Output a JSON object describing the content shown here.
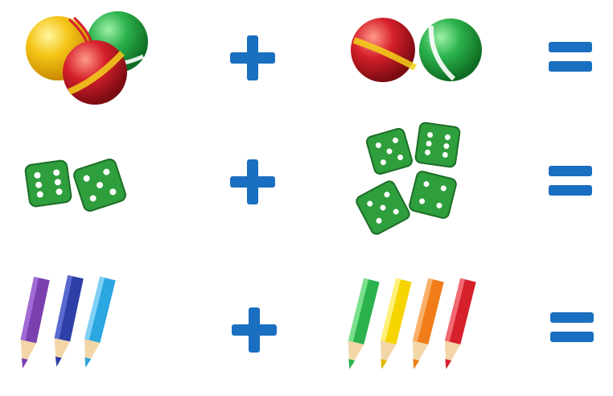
{
  "worksheet": {
    "rows": [
      {
        "left": {
          "object": "balls",
          "count": 3,
          "colors": [
            "#f5c518",
            "#2bb24c",
            "#d6202b"
          ]
        },
        "operator": "plus",
        "right": {
          "object": "balls",
          "count": 2,
          "colors": [
            "#d6202b",
            "#2bb24c"
          ]
        },
        "result": "equals"
      },
      {
        "left": {
          "object": "dice",
          "count": 2,
          "colors": [
            "#2f9e3c"
          ]
        },
        "operator": "plus",
        "right": {
          "object": "dice",
          "count": 4,
          "colors": [
            "#2f9e3c"
          ]
        },
        "result": "equals"
      },
      {
        "left": {
          "object": "pencils",
          "count": 3,
          "colors": [
            "#7b3fb0",
            "#2e3fa8",
            "#2aa6e0"
          ]
        },
        "operator": "plus",
        "right": {
          "object": "pencils",
          "count": 4,
          "colors": [
            "#2bb24c",
            "#f5d400",
            "#f07d1a",
            "#d6202b"
          ]
        },
        "result": "equals"
      }
    ],
    "operator_color": "#1a6fc0",
    "icons": [
      "ball-icon",
      "dice-icon",
      "pencil-icon",
      "plus-icon",
      "equals-icon"
    ]
  }
}
